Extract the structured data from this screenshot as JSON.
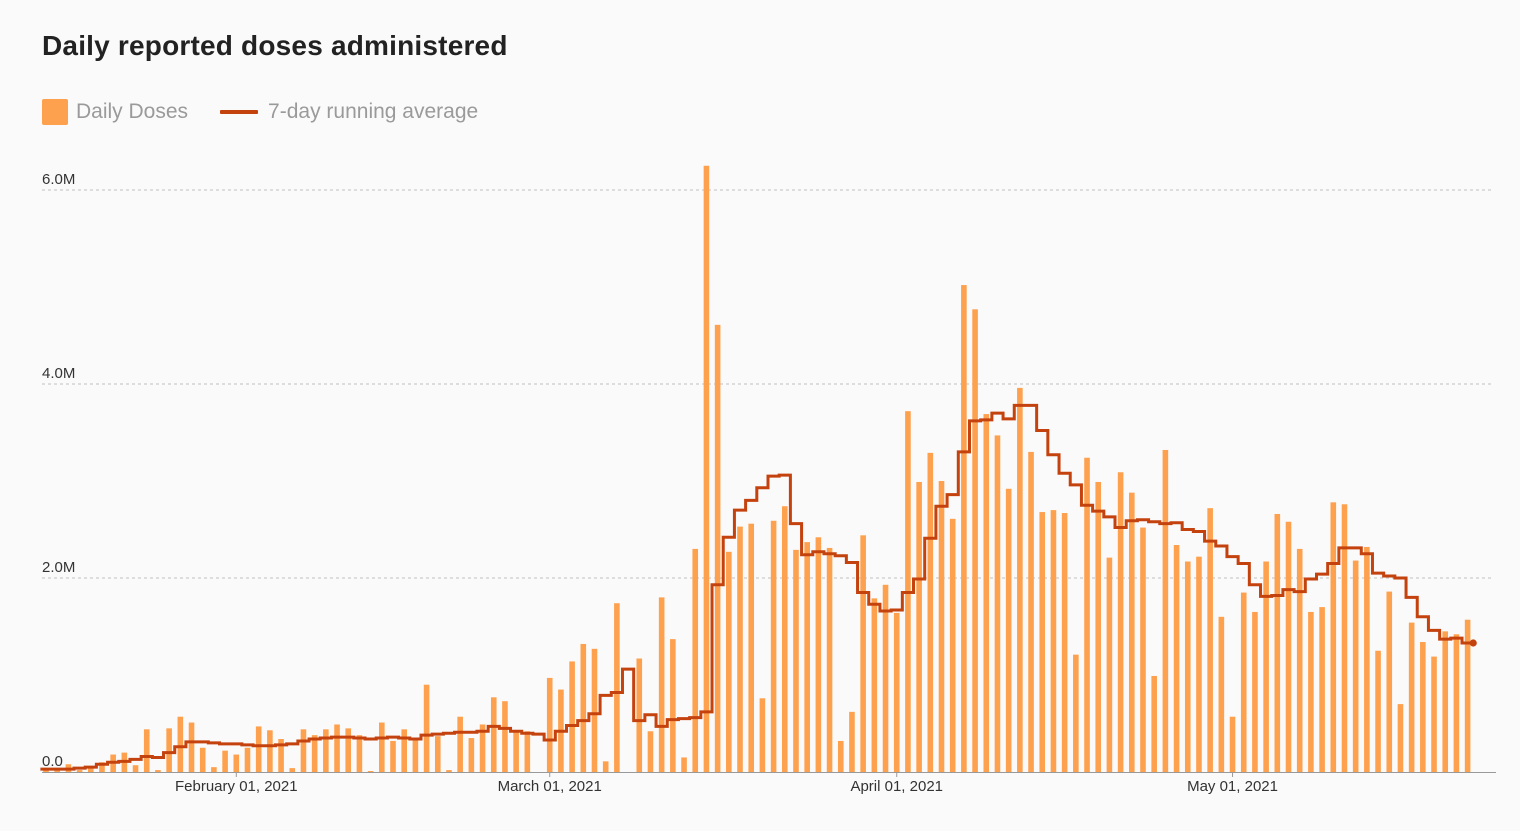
{
  "title": "Daily reported doses administered",
  "legend": {
    "bars_label": "Daily Doses",
    "line_label": "7-day running average"
  },
  "colors": {
    "bars": "#fea14f",
    "line": "#c4420e",
    "grid": "#cccccc",
    "axis": "#999999"
  },
  "chart_data": {
    "type": "bar",
    "title": "Daily reported doses administered",
    "xlabel": "",
    "ylabel": "",
    "x_start": "2021-01-15",
    "x_end": "2021-05-24",
    "ylim": [
      0,
      6000000
    ],
    "grid": true,
    "legend_position": "top-left",
    "y_ticks": [
      {
        "value": 0,
        "label": "0.0"
      },
      {
        "value": 2000000,
        "label": "2.0M"
      },
      {
        "value": 4000000,
        "label": "4.0M"
      },
      {
        "value": 6000000,
        "label": "6.0M"
      }
    ],
    "x_ticks": [
      {
        "date": "2021-02-01",
        "label": "February 01, 2021"
      },
      {
        "date": "2021-03-01",
        "label": "March 01, 2021"
      },
      {
        "date": "2021-04-01",
        "label": "April 01, 2021"
      },
      {
        "date": "2021-05-01",
        "label": "May 01, 2021"
      }
    ],
    "series": [
      {
        "name": "Daily Doses",
        "type": "bar",
        "values": [
          20000,
          20000,
          80000,
          20000,
          50000,
          100000,
          180000,
          200000,
          70000,
          440000,
          20000,
          450000,
          570000,
          510000,
          250000,
          50000,
          220000,
          180000,
          250000,
          470000,
          430000,
          340000,
          40000,
          440000,
          380000,
          440000,
          490000,
          450000,
          380000,
          10000,
          510000,
          320000,
          440000,
          340000,
          900000,
          370000,
          20000,
          570000,
          350000,
          490000,
          770000,
          730000,
          430000,
          420000,
          0,
          970000,
          850000,
          1140000,
          1320000,
          1270000,
          110000,
          1740000,
          0,
          1170000,
          420000,
          1800000,
          1370000,
          150000,
          2300000,
          6250000,
          4610000,
          2270000,
          2530000,
          2560000,
          760000,
          2590000,
          2740000,
          2290000,
          2370000,
          2420000,
          2310000,
          320000,
          620000,
          2440000,
          1790000,
          1930000,
          1640000,
          3720000,
          2990000,
          3290000,
          3000000,
          2610000,
          5020000,
          4770000,
          3690000,
          3470000,
          2920000,
          3960000,
          3300000,
          2680000,
          2700000,
          2670000,
          1210000,
          3240000,
          2990000,
          2210000,
          3090000,
          2880000,
          2520000,
          990000,
          3320000,
          2340000,
          2170000,
          2220000,
          2720000,
          1600000,
          570000,
          1850000,
          1650000,
          2170000,
          2660000,
          2580000,
          2300000,
          1650000,
          1700000,
          2780000,
          2760000,
          2180000,
          2320000,
          1250000,
          1860000,
          700000,
          1540000,
          1340000,
          1190000,
          1450000,
          1420000,
          1570000
        ]
      },
      {
        "name": "7-day running average",
        "type": "step-line",
        "values": [
          30000,
          30000,
          30000,
          40000,
          50000,
          80000,
          100000,
          110000,
          130000,
          160000,
          150000,
          200000,
          260000,
          310000,
          310000,
          300000,
          290000,
          290000,
          280000,
          270000,
          270000,
          280000,
          290000,
          320000,
          340000,
          350000,
          360000,
          360000,
          350000,
          340000,
          350000,
          360000,
          350000,
          340000,
          380000,
          390000,
          400000,
          410000,
          410000,
          420000,
          470000,
          450000,
          420000,
          400000,
          390000,
          330000,
          420000,
          480000,
          530000,
          600000,
          790000,
          820000,
          1060000,
          530000,
          590000,
          470000,
          540000,
          550000,
          560000,
          620000,
          1930000,
          2420000,
          2700000,
          2800000,
          2930000,
          3050000,
          3060000,
          2560000,
          2240000,
          2270000,
          2250000,
          2230000,
          2160000,
          1850000,
          1730000,
          1660000,
          1670000,
          1850000,
          1990000,
          2410000,
          2740000,
          2860000,
          3300000,
          3620000,
          3630000,
          3700000,
          3640000,
          3780000,
          3780000,
          3520000,
          3270000,
          3080000,
          2960000,
          2750000,
          2690000,
          2630000,
          2520000,
          2590000,
          2600000,
          2580000,
          2560000,
          2570000,
          2500000,
          2480000,
          2380000,
          2330000,
          2220000,
          2150000,
          1930000,
          1810000,
          1820000,
          1880000,
          1860000,
          1990000,
          2040000,
          2150000,
          2310000,
          2310000,
          2250000,
          2050000,
          2020000,
          2000000,
          1800000,
          1600000,
          1460000,
          1370000,
          1380000,
          1330000
        ]
      }
    ]
  }
}
